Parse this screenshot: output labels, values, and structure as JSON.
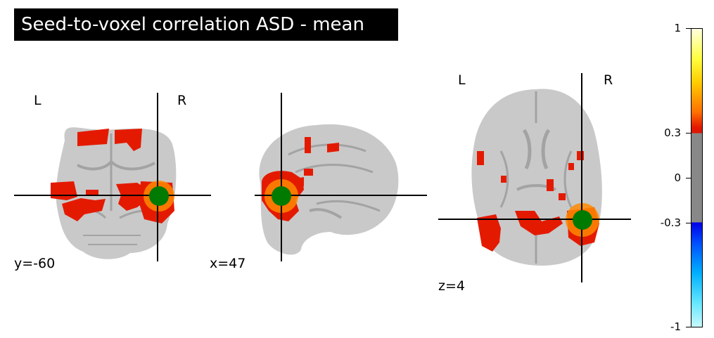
{
  "title": "Seed-to-voxel correlation ASD - mean",
  "colors": {
    "brain": "#c9c9c9",
    "brain_dark": "#a3a3a3",
    "activation": "#e41a00",
    "activation_hot": "#ff8a00",
    "seed": "#007a00",
    "crosshair": "#000000"
  },
  "panels": {
    "coronal": {
      "left_label": "L",
      "right_label": "R",
      "coord_label": "y=-60"
    },
    "sagittal": {
      "coord_label": "x=47"
    },
    "axial": {
      "left_label": "L",
      "right_label": "R",
      "coord_label": "z=4"
    }
  },
  "colorbar": {
    "ticks": [
      "1",
      "0.3",
      "0",
      "-0.3",
      "-1"
    ],
    "threshold": 0.3,
    "range": [
      -1,
      1
    ]
  }
}
